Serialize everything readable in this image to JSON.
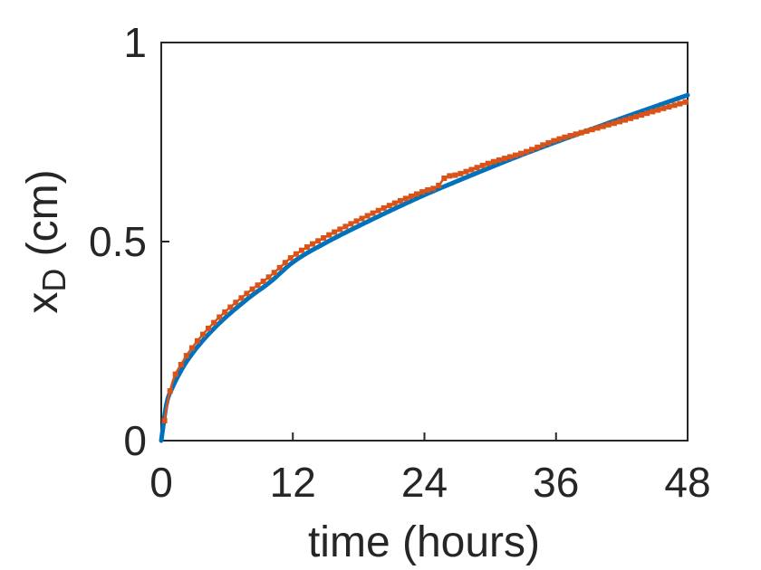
{
  "figure": {
    "background_color": "#FFFFFF",
    "axes_color": "#262626"
  },
  "chart_data": {
    "type": "line",
    "title": "",
    "xlabel": "time (hours)",
    "ylabel": {
      "base": "x",
      "sub": "D",
      "rest": " (cm)"
    },
    "xlim": [
      0,
      48
    ],
    "ylim": [
      0,
      1
    ],
    "grid": false,
    "legend": null,
    "xticks": {
      "values": [
        0,
        12,
        24,
        36,
        48
      ],
      "labels": [
        "0",
        "12",
        "24",
        "36",
        "48"
      ]
    },
    "yticks": {
      "values": [
        0,
        0.5,
        1
      ],
      "labels": [
        "0",
        "0.5",
        "1"
      ]
    },
    "series": [
      {
        "name": "smooth-model-curve",
        "style": "solid-line",
        "color": "#0072BD",
        "x": [
          0,
          0.5,
          1,
          2,
          3,
          4,
          5,
          6,
          8,
          10,
          12,
          15,
          18,
          21,
          24,
          27,
          30,
          33,
          36,
          39,
          42,
          45,
          48
        ],
        "y": [
          0,
          0.095,
          0.132,
          0.185,
          0.225,
          0.258,
          0.287,
          0.313,
          0.359,
          0.4,
          0.448,
          0.497,
          0.539,
          0.579,
          0.617,
          0.652,
          0.686,
          0.719,
          0.75,
          0.78,
          0.81,
          0.839,
          0.868
        ]
      },
      {
        "name": "measured-data-curve",
        "style": "square-markers",
        "color": "#D95319",
        "marker": "square",
        "marker_interval_hours": 0.5,
        "x": [
          0.3,
          0.5,
          1,
          2,
          3,
          4,
          5,
          6,
          8,
          10,
          12,
          15,
          18,
          21,
          24,
          25.3,
          25.8,
          27,
          30,
          33,
          36,
          39,
          42,
          45,
          48
        ],
        "y": [
          0.05,
          0.085,
          0.145,
          0.2,
          0.24,
          0.273,
          0.302,
          0.328,
          0.374,
          0.415,
          0.463,
          0.512,
          0.554,
          0.593,
          0.627,
          0.641,
          0.659,
          0.668,
          0.698,
          0.723,
          0.755,
          0.779,
          0.803,
          0.828,
          0.852
        ]
      }
    ]
  }
}
